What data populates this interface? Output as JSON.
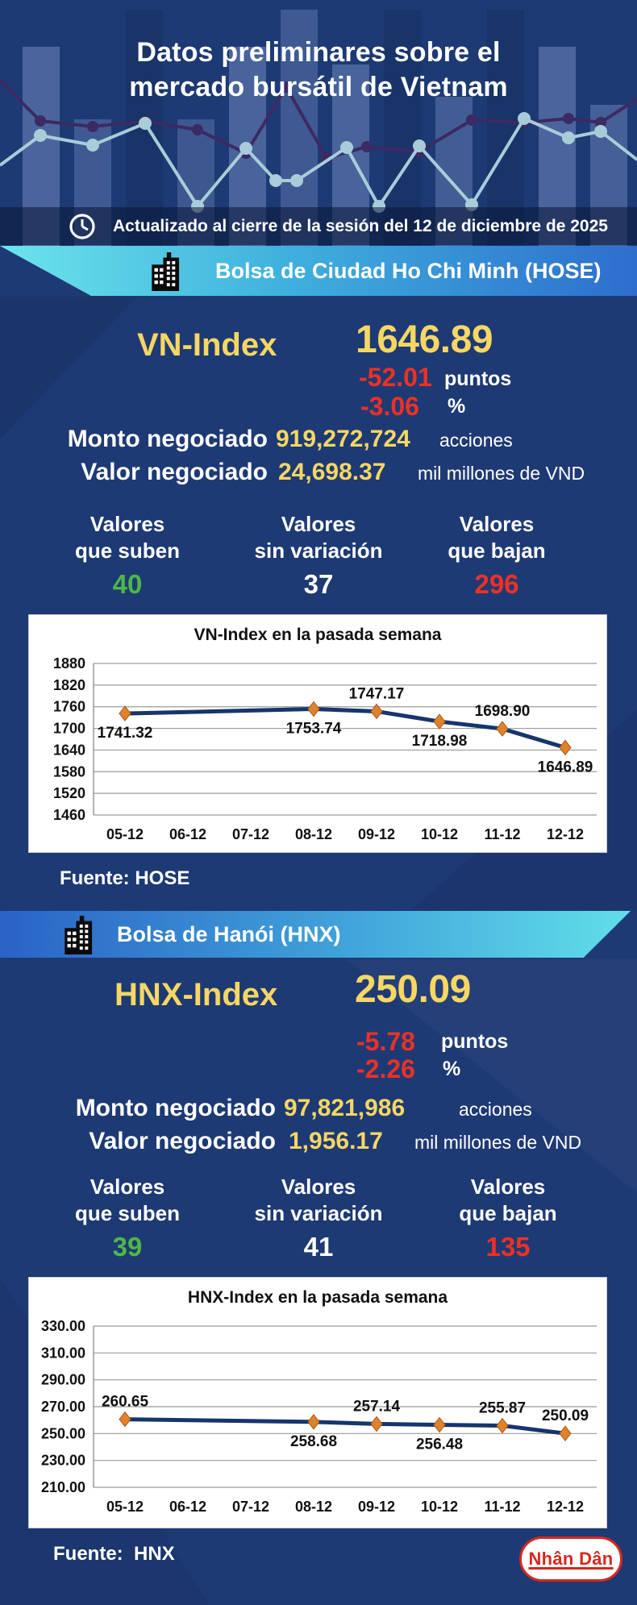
{
  "header": {
    "title_line1": "Datos preliminares sobre el",
    "title_line2": "mercado bursátil de Vietnam",
    "updated": "Actualizado al cierre de la sesión del 12 de diciembre de 2025"
  },
  "hose": {
    "banner": "Bolsa de Ciudad Ho Chi Minh (HOSE)",
    "index_label": "VN-Index",
    "index_value": "1646.89",
    "change_points": "-52.01",
    "points_unit": "puntos",
    "change_percent": "-3.06",
    "percent_unit": "%",
    "volume_label": "Monto negociado",
    "volume_value": "919,272,724",
    "volume_unit": "acciones",
    "turnover_label": "Valor negociado",
    "turnover_value": "24,698.37",
    "turnover_unit": "mil millones de VND",
    "advancers_line1": "Valores",
    "advancers_line2": "que suben",
    "advancers_value": "40",
    "unchanged_line1": "Valores",
    "unchanged_line2": "sin variación",
    "unchanged_value": "37",
    "decliners_line1": "Valores",
    "decliners_line2": "que bajan",
    "decliners_value": "296",
    "source": "Fuente: HOSE"
  },
  "hnx": {
    "banner": "Bolsa de Hanói (HNX)",
    "index_label": "HNX-Index",
    "index_value": "250.09",
    "change_points": "-5.78",
    "points_unit": "puntos",
    "change_percent": "-2.26",
    "percent_unit": "%",
    "volume_label": "Monto negociado",
    "volume_value": "97,821,986",
    "volume_unit": "acciones",
    "turnover_label": "Valor negociado",
    "turnover_value": "1,956.17",
    "turnover_unit": "mil millones de VND",
    "advancers_line1": "Valores",
    "advancers_line2": "que suben",
    "advancers_value": "39",
    "unchanged_line1": "Valores",
    "unchanged_line2": "sin variación",
    "unchanged_value": "41",
    "decliners_line1": "Valores",
    "decliners_line2": "que bajan",
    "decliners_value": "135",
    "source": "Fuente:  HNX"
  },
  "chart_data": [
    {
      "type": "line",
      "name": "VN-Index",
      "title": "VN-Index en la pasada semana",
      "categories": [
        "05-12",
        "06-12",
        "07-12",
        "08-12",
        "09-12",
        "10-12",
        "11-12",
        "12-12"
      ],
      "points": [
        {
          "x": "05-12",
          "y": 1741.32,
          "label": "1741.32",
          "label_pos": "below"
        },
        {
          "x": "08-12",
          "y": 1753.74,
          "label": "1753.74",
          "label_pos": "below"
        },
        {
          "x": "09-12",
          "y": 1747.17,
          "label": "1747.17",
          "label_pos": "above"
        },
        {
          "x": "10-12",
          "y": 1718.98,
          "label": "1718.98",
          "label_pos": "below"
        },
        {
          "x": "11-12",
          "y": 1698.9,
          "label": "1698.90",
          "label_pos": "above"
        },
        {
          "x": "12-12",
          "y": 1646.89,
          "label": "1646.89",
          "label_pos": "below"
        }
      ],
      "ylim": [
        1460,
        1880
      ],
      "yticks": [
        "1880",
        "1820",
        "1760",
        "1700",
        "1640",
        "1580",
        "1520",
        "1460"
      ],
      "grid": true,
      "legend": false
    },
    {
      "type": "line",
      "name": "HNX-Index",
      "title": "HNX-Index en la pasada semana",
      "categories": [
        "05-12",
        "06-12",
        "07-12",
        "08-12",
        "09-12",
        "10-12",
        "11-12",
        "12-12"
      ],
      "points": [
        {
          "x": "05-12",
          "y": 260.65,
          "label": "260.65",
          "label_pos": "above"
        },
        {
          "x": "08-12",
          "y": 258.68,
          "label": "258.68",
          "label_pos": "below"
        },
        {
          "x": "09-12",
          "y": 257.14,
          "label": "257.14",
          "label_pos": "above"
        },
        {
          "x": "10-12",
          "y": 256.48,
          "label": "256.48",
          "label_pos": "below"
        },
        {
          "x": "11-12",
          "y": 255.87,
          "label": "255.87",
          "label_pos": "above"
        },
        {
          "x": "12-12",
          "y": 250.09,
          "label": "250.09",
          "label_pos": "above"
        }
      ],
      "ylim": [
        210,
        330
      ],
      "yticks": [
        "330.00",
        "310.00",
        "290.00",
        "270.00",
        "250.00",
        "230.00",
        "210.00"
      ],
      "grid": true,
      "legend": false
    }
  ],
  "footer": {
    "logo_text": "Nhân Dân"
  },
  "colors": {
    "background": "#1e3a74",
    "accent_yellow": "#f6d763",
    "negative_red": "#ee3124",
    "positive_green": "#4db848",
    "banner_cyan": "#62e0ea",
    "banner_blue": "#2a63c5",
    "chart_line": "#16356d",
    "chart_marker": "#e0812c",
    "chart_marker_edge": "#a85a18"
  }
}
